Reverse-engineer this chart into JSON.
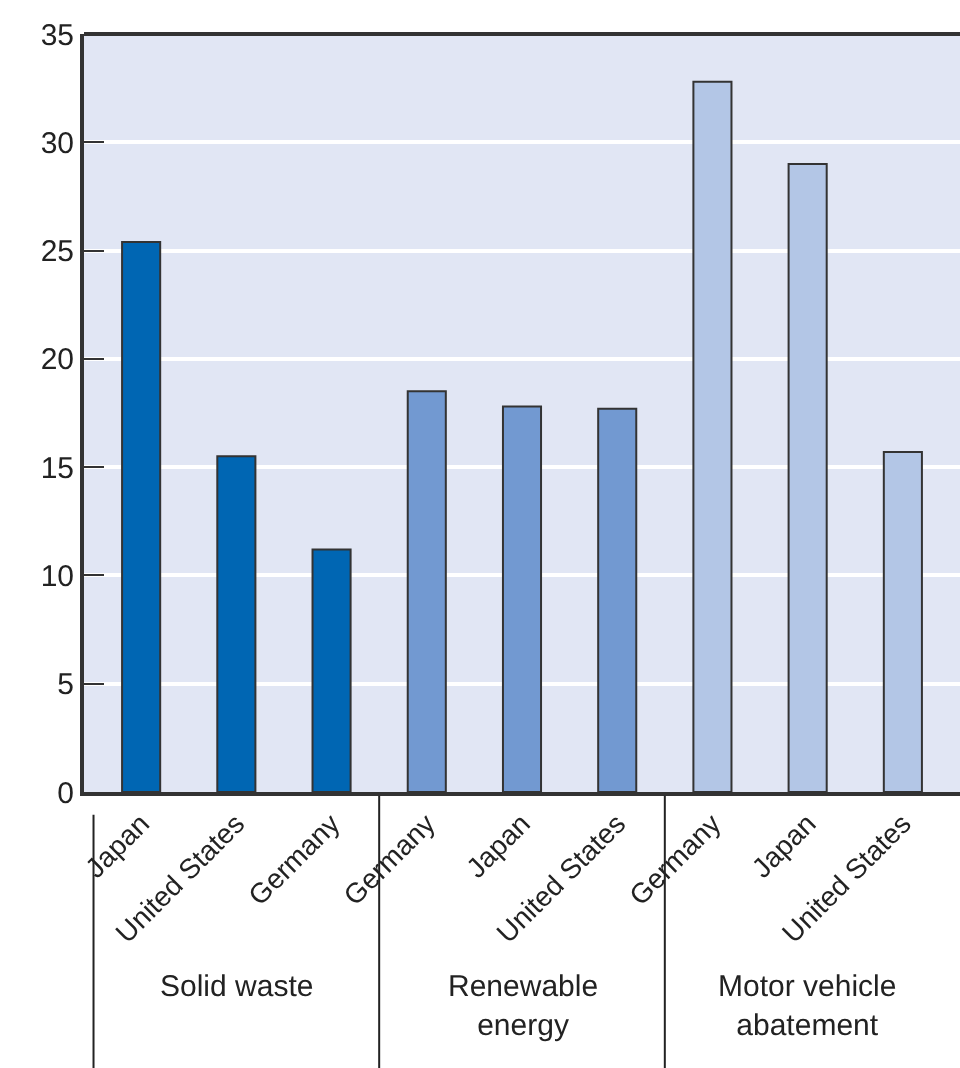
{
  "chart_data": {
    "type": "bar",
    "categories": [
      "Japan",
      "United States",
      "Germany",
      "Germany",
      "Japan",
      "United States",
      "Germany",
      "Japan",
      "United States"
    ],
    "values": [
      25.4,
      15.5,
      11.2,
      18.5,
      17.8,
      17.7,
      32.8,
      29.0,
      15.7
    ],
    "colors": [
      "#0066b3",
      "#0066b3",
      "#0066b3",
      "#7299d1",
      "#7299d1",
      "#7299d1",
      "#b3c6e6",
      "#b3c6e6",
      "#b3c6e6"
    ],
    "ylim": [
      0,
      35
    ],
    "yticks": [
      0,
      5,
      10,
      15,
      20,
      25,
      30,
      35
    ],
    "grid": "y",
    "annotations": [
      "Solid waste",
      "Renewable\nenergy",
      "Motor vehicle\nabatement"
    ]
  }
}
